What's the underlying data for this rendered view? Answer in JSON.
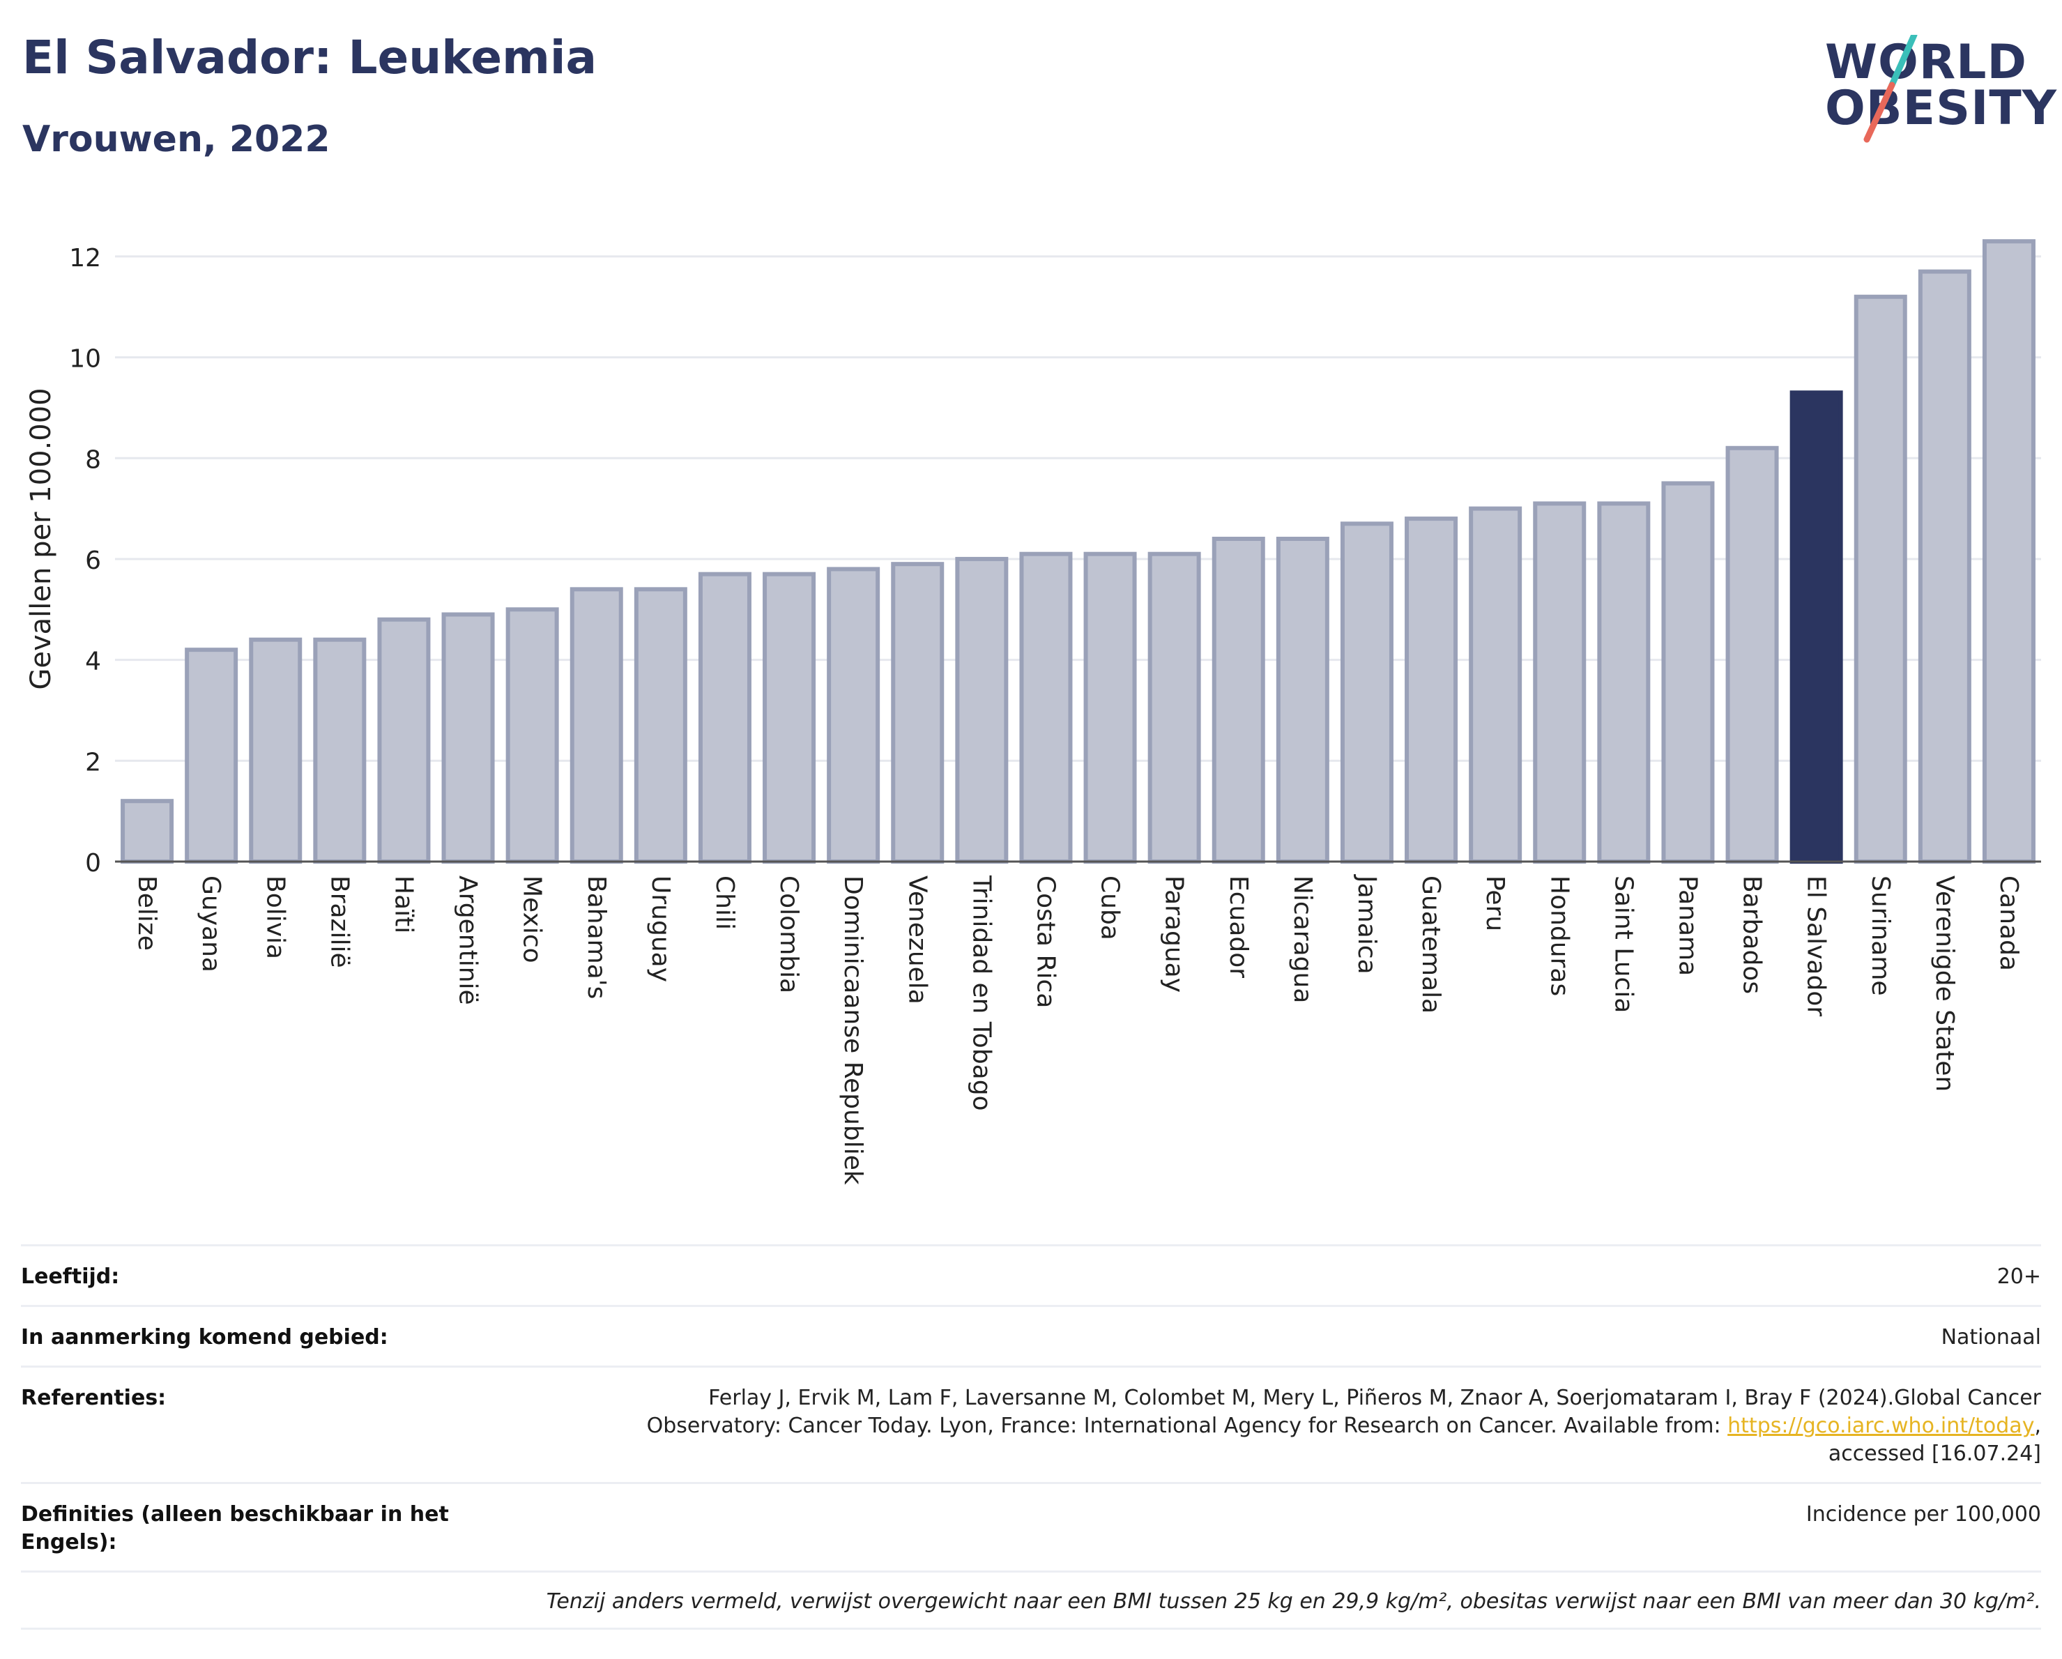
{
  "header": {
    "title": "El Salvador: Leukemia",
    "subtitle": "Vrouwen, 2022"
  },
  "logo": {
    "line1": "WORLD",
    "line2": "OBESITY",
    "colors": {
      "text": "#2b3560",
      "slash_top": "#3bbfb9",
      "slash_bottom": "#e8685a"
    }
  },
  "chart_data": {
    "type": "bar",
    "ylabel": "Gevallen per 100.000",
    "xlabel": "",
    "ylim": [
      0,
      12.8
    ],
    "yticks": [
      0,
      2,
      4,
      6,
      8,
      10,
      12
    ],
    "grid": true,
    "highlight": "El Salvador",
    "colors": {
      "bar": "#bfc3d1",
      "bar_edge": "#9aa1b8",
      "highlight": "#2b3560"
    },
    "categories": [
      "Belize",
      "Guyana",
      "Bolivia",
      "Brazilië",
      "Haïti",
      "Argentinië",
      "Mexico",
      "Bahama's",
      "Uruguay",
      "Chili",
      "Colombia",
      "Dominicaanse Republiek",
      "Venezuela",
      "Trinidad en Tobago",
      "Costa Rica",
      "Cuba",
      "Paraguay",
      "Ecuador",
      "Nicaragua",
      "Jamaica",
      "Guatemala",
      "Peru",
      "Honduras",
      "Saint Lucia",
      "Panama",
      "Barbados",
      "El Salvador",
      "Suriname",
      "Verenigde Staten",
      "Canada"
    ],
    "values": [
      1.2,
      4.2,
      4.4,
      4.4,
      4.8,
      4.9,
      5.0,
      5.4,
      5.4,
      5.7,
      5.7,
      5.8,
      5.9,
      6.0,
      6.1,
      6.1,
      6.1,
      6.4,
      6.4,
      6.7,
      6.8,
      7.0,
      7.1,
      7.1,
      7.5,
      8.2,
      9.3,
      11.2,
      11.7,
      12.3
    ]
  },
  "meta": {
    "age_label": "Leeftijd:",
    "age_value": "20+",
    "area_label": "In aanmerking komend gebied:",
    "area_value": "Nationaal",
    "ref_label": "Referenties:",
    "ref_text_1": "Ferlay J, Ervik M, Lam F, Laversanne M, Colombet M, Mery L, Piñeros M, Znaor A, Soerjomataram I, Bray F (2024).Global Cancer Observatory: Cancer Today. Lyon, France: International Agency for Research on Cancer. Available from: ",
    "ref_link": "https://gco.iarc.who.int/today",
    "ref_text_2": ", accessed [16.07.24]",
    "def_label": "Definities (alleen beschikbaar in het Engels):",
    "def_value": "Incidence per 100,000",
    "note": "Tenzij anders vermeld, verwijst overgewicht naar een BMI tussen 25 kg en 29,9 kg/m², obesitas verwijst naar een BMI van meer dan 30 kg/m²."
  }
}
